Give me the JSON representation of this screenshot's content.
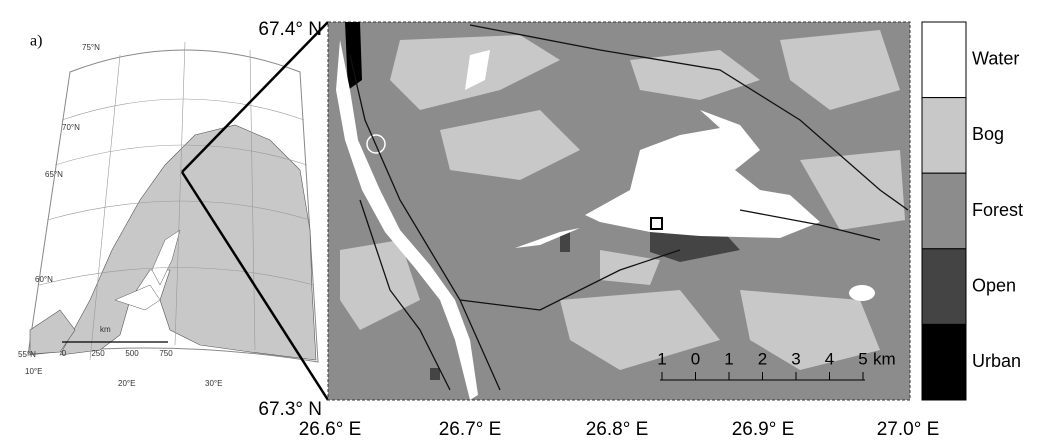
{
  "panel_label": "a)",
  "inset": {
    "lat_labels": [
      "75°N",
      "70°N",
      "65°N",
      "60°N",
      "55°N"
    ],
    "lon_labels": [
      "10°E",
      "20°E",
      "30°E"
    ],
    "scale": {
      "unit": "km",
      "ticks": [
        "0",
        "250",
        "500",
        "750"
      ]
    }
  },
  "main_map": {
    "lat_labels": [
      "67.4° N",
      "67.3° N"
    ],
    "lon_labels": [
      "26.6° E",
      "26.7° E",
      "26.8° E",
      "26.9° E",
      "27.0° E"
    ],
    "scale_bar": {
      "ticks": [
        "1",
        "0",
        "1",
        "2",
        "3",
        "4",
        "5"
      ],
      "unit": "km"
    }
  },
  "legend": {
    "classes": [
      {
        "name": "Water",
        "color": "#ffffff"
      },
      {
        "name": "Bog",
        "color": "#c8c8c8"
      },
      {
        "name": "Forest",
        "color": "#8c8c8c"
      },
      {
        "name": "Open",
        "color": "#444444"
      },
      {
        "name": "Urban",
        "color": "#000000"
      }
    ]
  }
}
